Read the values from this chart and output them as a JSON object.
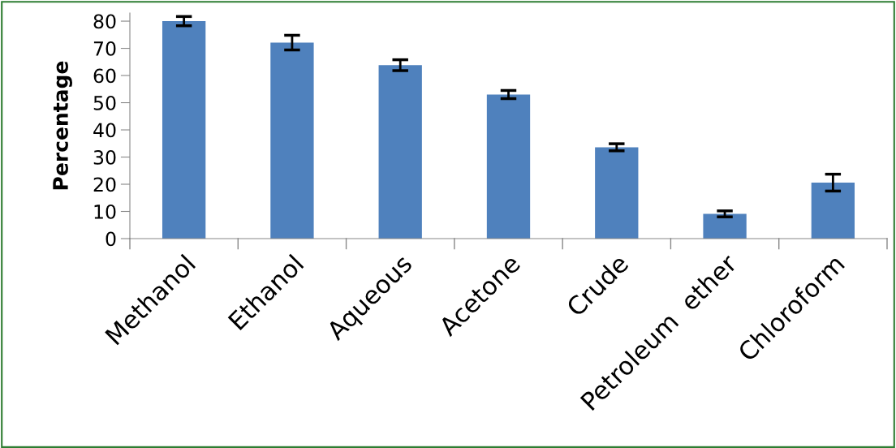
{
  "chart_data": {
    "type": "bar",
    "categories": [
      "Methanol",
      "Ethanol",
      "Aqueous",
      "Acetone",
      "Crude",
      "Petroleum  ether",
      "Chloroform"
    ],
    "values": [
      80,
      72.1,
      63.8,
      53.0,
      33.6,
      9.1,
      20.6
    ],
    "errors": [
      1.7,
      2.7,
      2.0,
      1.5,
      1.3,
      1.1,
      3.1
    ],
    "color": "#4f81bd",
    "ylabel": "Percentage",
    "ylim": [
      0,
      83
    ],
    "yticks": [
      0,
      10,
      20,
      30,
      40,
      50,
      60,
      70,
      80
    ],
    "grid": false,
    "legend": false
  }
}
